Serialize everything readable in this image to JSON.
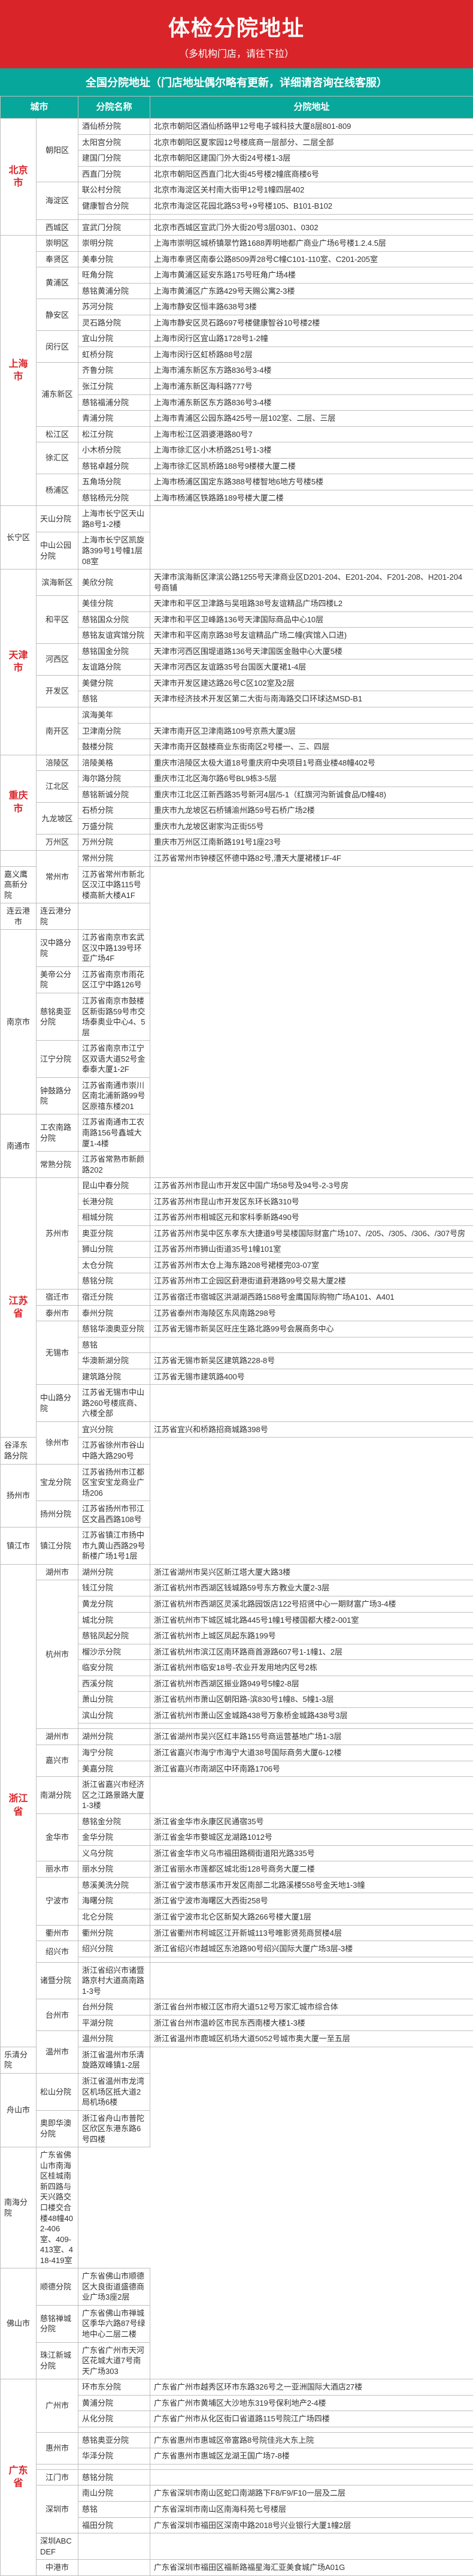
{
  "header": {
    "title": "体检分院地址",
    "sub": "（多机构门店，请往下拉）"
  },
  "subhead": "全国分院地址（门店地址偶尔略有更新，详细请咨询在线客服）",
  "cols": [
    "城市",
    "",
    "分院名称",
    "分院地址"
  ],
  "rows": [
    {
      "city": "北京市",
      "cityRows": 8,
      "dist": "朝阳区",
      "distRows": 4,
      "branch": "酒仙桥分院",
      "addr": "北京市朝阳区酒仙桥路甲12号电子城科技大厦8层801-809"
    },
    {
      "branch": "太阳宫分院",
      "addr": "北京市朝阳区夏家园12号楼底商一层部分、二层全部"
    },
    {
      "branch": "建国门分院",
      "addr": "北京市朝阳区建国门外大街24号楼1-3层"
    },
    {
      "branch": "西直门分院",
      "addr": "北京市朝阳区西直门北大街45号楼2幢底商楼6号"
    },
    {
      "dist": "海淀区",
      "distRows": 3,
      "branch": "联公村分院",
      "addr": "北京市海淀区关村南大街甲12号1幢四层402"
    },
    {
      "branch": "健康智合分院",
      "addr": "北京市海淀区花园北路53号+9号楼105、B101-B102"
    },
    {
      "branch": "",
      "addr": ""
    },
    {
      "dist": "西城区",
      "distRows": 1,
      "branch": "宣武门分院",
      "addr": "北京市西城区宣武门外大街20号3层0301、0302"
    },
    {
      "city": "上海市",
      "cityRows": 17,
      "dist": "崇明区",
      "distRows": 1,
      "branch": "崇明分院",
      "addr": "上海市崇明区城桥镇翠竹路1688弄明地都广商业广场6号楼1.2.4.5层"
    },
    {
      "dist": "奉贤区",
      "distRows": 1,
      "branch": "美奉分院",
      "addr": "上海市奉贤区南泰公路8509弄28号C幢C101-110室、C201-205室"
    },
    {
      "dist": "黄浦区",
      "distRows": 2,
      "branch": "旺角分院",
      "addr": "上海市黄浦区延安东路175号旺角广场4楼"
    },
    {
      "branch": "慈铭黄浦分院",
      "addr": "上海市黄浦区广东路429号天赐公寓2-3楼"
    },
    {
      "dist": "静安区",
      "distRows": 2,
      "branch": "苏河分院",
      "addr": "上海市静安区恒丰路638号3楼"
    },
    {
      "branch": "灵石路分院",
      "addr": "上海市静安区灵石路697号楼健康智谷10号楼2楼"
    },
    {
      "dist": "闵行区",
      "distRows": 2,
      "branch": "宜山分院",
      "addr": "上海市闵行区宜山路1728号1-2幢"
    },
    {
      "branch": "虹桥分院",
      "addr": "上海市闵行区虹桥路88号2层"
    },
    {
      "dist": "浦东新区",
      "distRows": 4,
      "branch": "齐鲁分院",
      "addr": "上海市浦东新区东方路836号3-4楼"
    },
    {
      "branch": "张江分院",
      "addr": "上海市浦东新区海科路777号"
    },
    {
      "branch": "慈铭福浦分院",
      "addr": "上海市浦东新区东方路836号3-4楼"
    },
    {
      "branch": "青浦分院",
      "addr": "上海市青浦区公园东路425号一层102室、二层、三层"
    },
    {
      "dist": "松江区",
      "distRows": 1,
      "branch": "松江分院",
      "addr": "上海市松江区泗婆港路80号7"
    },
    {
      "dist": "徐汇区",
      "distRows": 2,
      "branch": "小木桥分院",
      "addr": "上海市徐汇区小木桥路251号1-3楼"
    },
    {
      "branch": "慈铭卓越分院",
      "addr": "上海市徐汇区凯桥路188号9楼楼大厦二楼"
    },
    {
      "dist": "杨浦区",
      "distRows": 2,
      "branch": "五角场分院",
      "addr": "上海市杨浦区国定东路388号楼智地6地方号楼5楼"
    },
    {
      "branch": "慈铭杨元分院",
      "addr": "上海市杨浦区铁路路189号楼大厦二楼"
    },
    {
      "dist": "长宁区",
      "distRows": 2,
      "branch": "天山分院",
      "addr": "上海市长宁区天山路8号1-2楼"
    },
    {
      "branch": "中山公园分院",
      "addr": "上海市长宁区凯旋路399号1号幢1层08室"
    },
    {
      "city": "天津市",
      "cityRows": 11,
      "dist": "滨海新区",
      "distRows": 1,
      "branch": "美欣分院",
      "addr": "天津市滨海新区津滨公路1255号天津商业区D201-204、E201-204、F201-208、H201-204号商铺"
    },
    {
      "dist": "和平区",
      "distRows": 3,
      "branch": "美佳分院",
      "addr": "天津市和平区卫津路与吴咀路38号友谊精品广场四楼L2"
    },
    {
      "branch": "慈铭国众分院",
      "addr": "天津市和平区卫峰路136号天津国际商品中心10层"
    },
    {
      "branch": "慈铭友谊宾馆分院",
      "addr": "天津市和平区南京路38号友谊精品广场二幢(宾馆入口进)"
    },
    {
      "dist": "河西区",
      "distRows": 2,
      "branch": "慈铭国金分院",
      "addr": "天津市河西区围堤道路136号天津国医金融中心大厦5楼"
    },
    {
      "branch": "友谊路分院",
      "addr": "天津市河西区友谊路35号台国医大厦裙1-4层"
    },
    {
      "dist": "开发区",
      "distRows": 2,
      "branch": "美健分院",
      "addr": "天津市开发区建达路26号C区102室及2层"
    },
    {
      "branch": "慈铭",
      "addr": "天津市经济技术开发区第二大街与南海路交口环球达MSD-B1"
    },
    {
      "dist": "南开区",
      "distRows": 3,
      "branch": "滨海美年",
      "addr": ""
    },
    {
      "branch": "卫津南分院",
      "addr": "天津市南开区卫津南路109号京燕大厦3层"
    },
    {
      "branch": "鼓楼分院",
      "addr": "天津市南开区鼓楼商业东街南区2号楼一、三、四层"
    },
    {
      "city": "重庆市",
      "cityRows": 6,
      "dist": "涪陵区",
      "distRows": 1,
      "branch": "涪陵美格",
      "addr": "重庆市涪陵区太极大道18号重庆府中央项目1号商业楼48幢402号"
    },
    {
      "dist": "江北区",
      "distRows": 2,
      "branch": "海尔路分院",
      "addr": "重庆市江北区海尔路6号BL9栋3-5层"
    },
    {
      "branch": "慈铭新诚分院",
      "addr": "重庆市江北区江新西路35号新河4层/5-1（红旗河沟新诚食品/D幢48)"
    },
    {
      "dist": "九龙坡区",
      "distRows": 2,
      "branch": "石桥分院",
      "addr": "重庆市九龙坡区石桥铺渝州路59号石桥广场2楼"
    },
    {
      "branch": "万盛分院",
      "addr": "重庆市九龙坡区谢家沟正街55号"
    },
    {
      "dist": "万州区",
      "distRows": 1,
      "branch": "万州分院",
      "addr": "重庆市万州区江南新路191号1座23号"
    },
    {
      "city": "",
      "cityRows": 1,
      "dist": "常州市",
      "distRows": 2,
      "branch": "常州分院",
      "addr": "江苏省常州市钟楼区怀德中路82号,漕天大厦裙楼1F-4F"
    },
    {
      "branch": "嘉义鹰高新分院",
      "addr": "江苏省常州市新北区汉江中路115号楼高新大楼A1F"
    },
    {
      "dist": "连云港市",
      "distRows": 1,
      "branch": "连云港分院",
      "addr": ""
    },
    {
      "dist": "南京市",
      "distRows": 5,
      "branch": "汉中路分院",
      "addr": "江苏省南京市玄武区汉中路139号环亚广场4F"
    },
    {
      "branch": "美帝公分院",
      "addr": "江苏省南京市雨花区江宁中路126号"
    },
    {
      "branch": "慈铭奥亚分院",
      "addr": "江苏省南京市鼓楼区新街路59号市交场泰奥业中心4、5层"
    },
    {
      "branch": "江宁分院",
      "addr": "江苏省南京市江宁区双语大道52号金泰泰大厦1-2F"
    },
    {
      "branch": "钟鼓路分院",
      "addr": "江苏省南通市崇川区南北浦新路99号区原禧东楼201"
    },
    {
      "dist": "南通市",
      "distRows": 2,
      "branch": "工农南路分院",
      "addr": "江苏省南通市工农南路156号鑫城大厦1-4楼"
    },
    {
      "branch": "常熟分院",
      "addr": "江苏省常熟市新颜路202"
    },
    {
      "city": "江苏省",
      "cityRows": 15,
      "dist": "苏州市",
      "distRows": 7,
      "branch": "昆山中春分院",
      "addr": "江苏省苏州市昆山市开发区中国广场58号及94号-2-3号房"
    },
    {
      "branch": "长港分院",
      "addr": "江苏省苏州市昆山市开发区东环长路310号"
    },
    {
      "branch": "相城分院",
      "addr": "江苏省苏州市相城区元和家科季新路490号"
    },
    {
      "branch": "奥亚分院",
      "addr": "江苏省苏州市吴中区东孝东大捷道9号吴楼国际财富广场107、/205、/305、/306、/307号房"
    },
    {
      "branch": "狮山分院",
      "addr": "江苏省苏州市狮山街道35号1幢101室"
    },
    {
      "branch": "太仓分院",
      "addr": "江苏省苏州市太仓上海东路208号裙楼完03-07室"
    },
    {
      "branch": "慈铭分院",
      "addr": "江苏省苏州市工企园区葑港街道葑港路99号交易大厦2楼"
    },
    {
      "dist": "宿迁市",
      "distRows": 1,
      "branch": "宿迁分院",
      "addr": "江苏省宿迁市宿城区洪湖湖西路1588号金鹰国际购物广场A101、A401"
    },
    {
      "dist": "泰州市",
      "distRows": 1,
      "branch": "泰州分院",
      "addr": "江苏省泰州市海陵区东风南路298号"
    },
    {
      "dist": "无锡市",
      "distRows": 4,
      "branch": "慈铭华澳奥亚分院",
      "addr": "江苏省无锡市新吴区旺庄生路北路99号会展商务中心"
    },
    {
      "branch": "慈铭",
      "addr": ""
    },
    {
      "branch": "华澳新湖分院",
      "addr": "江苏省无锡市新吴区建筑路228-8号"
    },
    {
      "branch": "建筑路分院",
      "addr": "江苏省无锡市建筑路400号"
    },
    {
      "branch": "中山路分院",
      "addr": "江苏省无锡市中山路260号楼底商、六楼全部"
    },
    {
      "dist": "徐州市",
      "distRows": 2,
      "branch": "宜兴分院",
      "addr": "江苏省宜兴和桥路招商城路398号"
    },
    {
      "branch": "谷泽东路分院",
      "addr": "江苏省徐州市谷山中路大路290号"
    },
    {
      "dist": "扬州市",
      "distRows": 2,
      "branch": "宝龙分院",
      "addr": "江苏省扬州市江都区宝安宝龙商业广场206"
    },
    {
      "branch": "扬州分院",
      "addr": "江苏省扬州市邗江区文昌西路108号"
    },
    {
      "dist": "镇江市",
      "distRows": 1,
      "branch": "镇江分院",
      "addr": "江苏省镇江市扬中市九黄山西路29号新楼广场1号1层"
    },
    {
      "city": "浙江省",
      "cityRows": 29,
      "dist": "湖州市",
      "distRows": 1,
      "branch": "湖州分院",
      "addr": "浙江省湖州市吴兴区新江塔大厦大路3楼"
    },
    {
      "dist": "杭州市",
      "distRows": 10,
      "branch": "钱江分院",
      "addr": "浙江省杭州市西湖区钱城路59号东方教业大厦2-3层"
    },
    {
      "branch": "黄龙分院",
      "addr": "浙江省杭州市西湖区灵溪北路园饭店122号招贤中心一期财富广场3-4楼"
    },
    {
      "branch": "城北分院",
      "addr": "浙江省杭州市下城区城北路445号1幢1号楼国都大楼2-001室"
    },
    {
      "branch": "慈铭凤起分院",
      "addr": "浙江省杭州市上城区凤起东路199号"
    },
    {
      "branch": "榴沙示分院",
      "addr": "浙江省杭州市滨江区南环路商首源路607号1-1幢1、2层"
    },
    {
      "branch": "临安分院",
      "addr": "浙江省杭州市临安18号-农业开发用地内区号2栋"
    },
    {
      "branch": "西溪分院",
      "addr": "浙江省杭州市西湖区振业路949号5幢2-8层"
    },
    {
      "branch": "萧山分院",
      "addr": "浙江省杭州市萧山区朝阳路-滨830号1幢8、5幢1-3层"
    },
    {
      "branch": "滨山分院",
      "addr": "浙江省杭州市萧山区金城路438号万象桥金城路438号3层"
    },
    {
      "branch": "",
      "addr": ""
    },
    {
      "dist": "湖州市",
      "distRows": 1,
      "branch": "湖州分院",
      "addr": "浙江省湖州市吴兴区红丰路155号商运营基地广场1-3层"
    },
    {
      "dist": "嘉兴市",
      "distRows": 2,
      "branch": "海宁分院",
      "addr": "浙江省嘉兴市海宁市海宁大道38号国际商务大厦6-12楼"
    },
    {
      "branch": "美嘉分院",
      "addr": "浙江省嘉兴市南湖区中环南路1706号"
    },
    {
      "branch": "南湖分院",
      "addr": "浙江省嘉兴市经济区之江路景路大厦1-3楼"
    },
    {
      "dist": "金华市",
      "distRows": 3,
      "branch": "慈铭金分院",
      "addr": "浙江省金华市永康区民通宿35号"
    },
    {
      "branch": "金华分院",
      "addr": "浙江省金华市婺城区龙湖路1012号"
    },
    {
      "branch": "义乌分院",
      "addr": "浙江省金华市义乌市福田路稠街道阳光路335号"
    },
    {
      "dist": "丽水市",
      "distRows": 1,
      "branch": "丽水分院",
      "addr": "浙江省丽水市莲都区城北街128号商务大厦二楼"
    },
    {
      "dist": "宁波市",
      "distRows": 3,
      "branch": "慈溪美洗分院",
      "addr": "浙江省宁波市慈溪市开发区南部二北路溪楼558号金天地1-3幢"
    },
    {
      "branch": "海曙分院",
      "addr": "浙江省宁波市海曙区大西街258号"
    },
    {
      "branch": "北仑分院",
      "addr": "浙江省宁波市北仑区新契大路266号楼大厦1层"
    },
    {
      "dist": "衢州市",
      "distRows": 1,
      "branch": "衢州分院",
      "addr": "浙江省衢州市柯城区江开新城113号唯影贤苑商贸楼4层"
    },
    {
      "dist": "绍兴市",
      "distRows": 2,
      "branch": "绍兴分院",
      "addr": "浙江省绍兴市越城区东池路90号绍兴国际大厦广场3层-3楼"
    },
    {
      "branch": "",
      "addr": ""
    },
    {
      "branch": "诸暨分院",
      "addr": "浙江省绍兴市诸暨路京村大道高南路1-3号"
    },
    {
      "dist": "台州市",
      "distRows": 2,
      "branch": "台州分院",
      "addr": "浙江省台州市椒江区市府大道512号万家汇城市综合体"
    },
    {
      "branch": "平湖分院",
      "addr": "浙江省台州市温岭区市民东西南楼大楼1-3楼"
    },
    {
      "dist": "温州市",
      "distRows": 2,
      "branch": "温州分院",
      "addr": "浙江省温州市鹿城区机场大道5052号城市奥大厦一至五层"
    },
    {
      "branch": "乐清分院",
      "addr": "浙江省温州市乐清旋路双峰镇1-2层"
    },
    {
      "dist": "舟山市",
      "distRows": 2,
      "branch": "松山分院",
      "addr": "浙江省温州市龙湾区机场区抵大道2局机场6楼"
    },
    {
      "branch": "奥即华澳分院",
      "addr": "浙江省舟山市普陀区欣区东港东路6号四楼"
    },
    {
      "branch": "南海分院",
      "addr": "广东省佛山市南海区桂城南新四路与天兴路交口楼交合楼48幢402-406室、409-413室、418-419室"
    },
    {
      "dist": "佛山市",
      "distRows": 3,
      "branch": "顺德分院",
      "addr": "广东省佛山市顺德区大良街道盛德商业广场3座2层"
    },
    {
      "branch": "慈铭禅城分院",
      "addr": "广东省佛山市禅城区季华六路87号绿地中心二层二楼"
    },
    {
      "branch": "珠江新城分院",
      "addr": "广东省广州市天河区花城大道7号南天广场303"
    },
    {
      "city": "广东省",
      "cityRows": 13,
      "dist": "广州市",
      "distRows": 4,
      "branch": "环市东分院",
      "addr": "广东省广州市越秀区环市东路326号之一亚洲国际大酒店27楼"
    },
    {
      "branch": "黄浦分院",
      "addr": "广东省广州市黄埔区大沙地东319号保利地产2-4楼"
    },
    {
      "branch": "从化分院",
      "addr": "广东省广州市从化区街口省道路115号院江广场四楼"
    },
    {
      "branch": "",
      "addr": ""
    },
    {
      "dist": "惠州市",
      "distRows": 2,
      "branch": "慈铭奥亚分院",
      "addr": "广东省惠州市惠城区帝富路8号院佳兆大东上院"
    },
    {
      "branch": "华泽分院",
      "addr": "广东省惠州市惠城区龙湖王国广场7-8楼"
    },
    {
      "branch": "",
      "addr": ""
    },
    {
      "dist": "江门市",
      "distRows": 1,
      "branch": "慈铭分院",
      "addr": ""
    },
    {
      "dist": "深圳市",
      "distRows": 3,
      "branch": "南山分院",
      "addr": "广东省深圳市南山区蛇口南湖路下F8/F9/F10一层及二层"
    },
    {
      "branch": "慈铭",
      "addr": "广东省深圳市南山区南海科苑七号楼层"
    },
    {
      "branch": "福田分院",
      "addr": "广东省深圳市福田区深南中路2018号兴业银行大厦1幢2层"
    },
    {
      "branch": "深圳ABCDEF",
      "addr": ""
    },
    {
      "dist": "中港市",
      "distRows": 1,
      "branch": "",
      "addr": "广东省深圳市福田区福新路福星海汇亚美食城广场A01G"
    }
  ]
}
